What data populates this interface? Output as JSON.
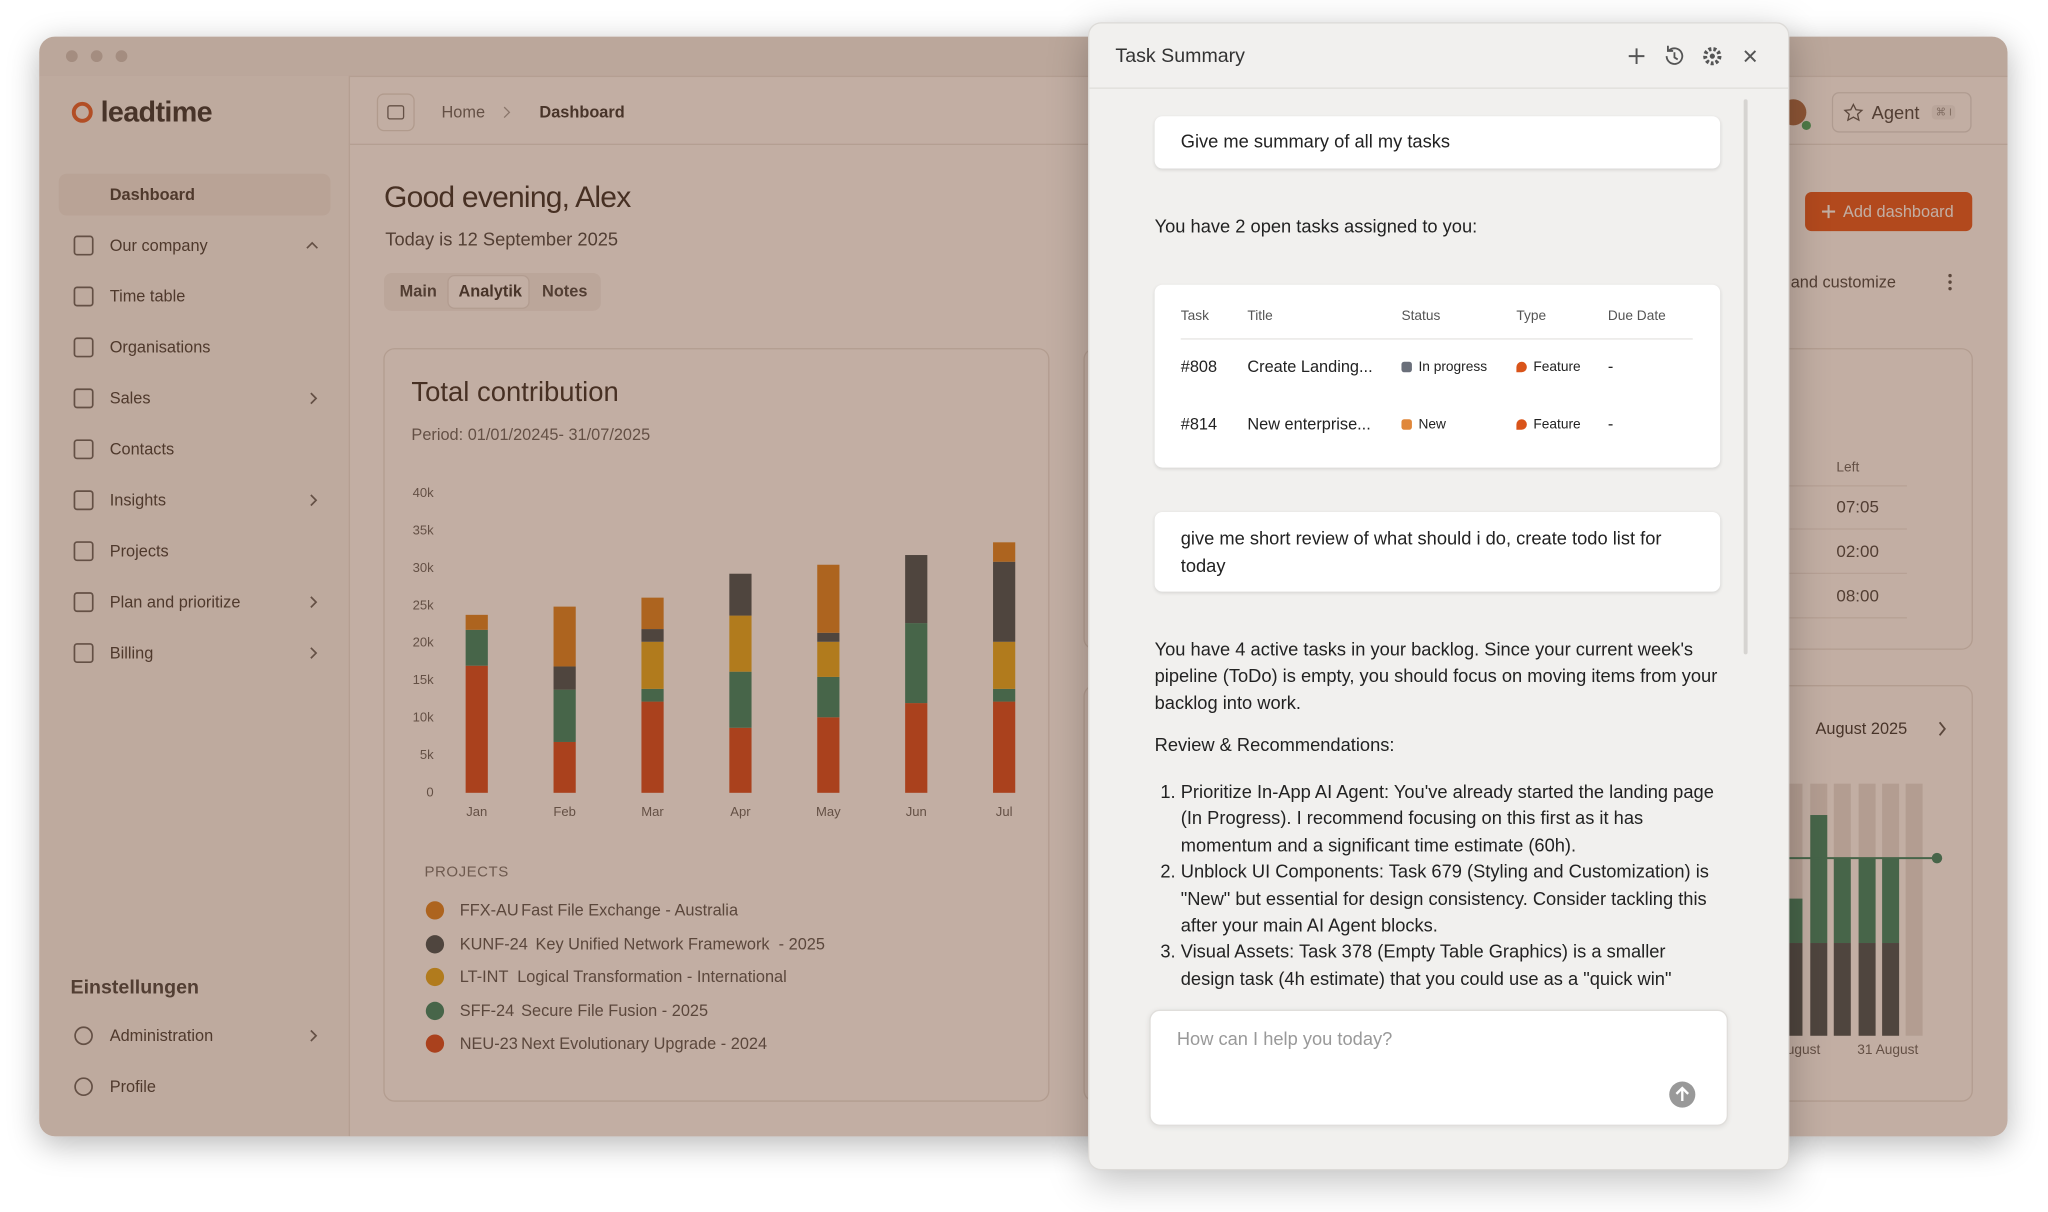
{
  "window": {
    "logo": "leadtime"
  },
  "sidebar": {
    "nav": [
      "Dashboard",
      "Our company",
      "Time table",
      "Organisations",
      "Sales",
      "Contacts",
      "Insights",
      "Projects",
      "Plan and prioritize",
      "Billing"
    ],
    "settings_title": "Einstellungen",
    "settings": [
      "Administration",
      "Profile"
    ]
  },
  "topbar": {
    "breadcrumb": [
      "Home",
      "Dashboard"
    ],
    "agent": "Agent",
    "shortcut": "⌘ I"
  },
  "dashboard": {
    "greeting": "Good evening, Alex",
    "date": "Today is 12 September 2025",
    "tabs": [
      "Main",
      "Analytik",
      "Notes"
    ],
    "add_dashboard": "Add dashboard",
    "customize": "and customize",
    "time_header": "Left",
    "times": [
      "07:05",
      "02:00",
      "08:00"
    ],
    "month": "August 2025",
    "axis_labels": [
      "ugust",
      "31 August"
    ]
  },
  "chart_data": {
    "type": "bar",
    "stacked": true,
    "title": "Total contribution",
    "subtitle": "Period: 01/01/20245- 31/07/2025",
    "legend_title": "PROJECTS",
    "categories": [
      "Jan",
      "Feb",
      "Mar",
      "Apr",
      "May",
      "Jun",
      "Jul"
    ],
    "ylim": [
      0,
      40000
    ],
    "yticks": [
      0,
      {
        "value": 5000,
        "label": "5k"
      },
      {
        "value": 10000,
        "label": "10k"
      },
      {
        "value": 15000,
        "label": "15k"
      },
      {
        "value": 20000,
        "label": "20k"
      },
      {
        "value": 25000,
        "label": "25k"
      },
      {
        "value": 30000,
        "label": "30k"
      },
      {
        "value": 35000,
        "label": "35k"
      },
      {
        "value": 40000,
        "label": "40k"
      }
    ],
    "grid": false,
    "series": [
      {
        "name": "FFX-AU",
        "description": "Fast File Exchange - Australia",
        "color": "#d9780f",
        "values": [
          2000,
          8000,
          4200,
          0,
          9100,
          0,
          2600
        ]
      },
      {
        "name": "KUNF-24",
        "description": "Key Unified Network Framework  - 2025",
        "color": "#2f4148",
        "values": [
          0,
          3100,
          1700,
          5600,
          1200,
          9100,
          10700
        ]
      },
      {
        "name": "LT-INT",
        "description": "Logical Transformation - International",
        "color": "#e0a20c",
        "values": [
          0,
          0,
          6300,
          7500,
          4700,
          0,
          6300
        ]
      },
      {
        "name": "SFF-24",
        "description": "Secure File Fusion - 2025",
        "color": "#1f7a5c",
        "values": [
          4800,
          7000,
          1700,
          7500,
          5400,
          10700,
          1700
        ]
      },
      {
        "name": "NEU-23",
        "description": "Next Evolutionary Upgrade - 2024",
        "color": "#d33a0c",
        "values": [
          17000,
          6800,
          12200,
          8700,
          10100,
          12000,
          12200
        ]
      }
    ]
  },
  "task_panel": {
    "title": "Task Summary",
    "user_1": "Give me summary of all my tasks",
    "reply_1": "You have 2 open tasks assigned to you:",
    "table": {
      "headers": [
        "Task",
        "Title",
        "Status",
        "Type",
        "Due Date"
      ],
      "rows": [
        [
          "#808",
          "Create Landing...",
          "In progress",
          "Feature",
          "-"
        ],
        [
          "#814",
          "New enterprise...",
          "New",
          "Feature",
          "-"
        ]
      ]
    },
    "user_2": "give me short review of what should i do, create todo list for today",
    "reply_2": {
      "intro": "You have 4 active tasks in your backlog. Since your current week's pipeline (ToDo) is empty, you should focus on moving items from your backlog into work.",
      "heading": "Review & Recommendations:",
      "items": [
        "Prioritize In-App AI Agent: You've already started the landing page (In Progress). I recommend focusing on this first as it has momentum and a significant time estimate (60h).",
        "Unblock UI Components: Task 679 (Styling and Customization) is \"New\" but essential for design consistency. Consider tackling this after your main AI Agent blocks.",
        "Visual Assets: Task 378 (Empty Table Graphics) is a smaller design task (4h estimate) that you could use as a \"quick win\""
      ]
    },
    "input_placeholder": "How can I help you today?"
  }
}
